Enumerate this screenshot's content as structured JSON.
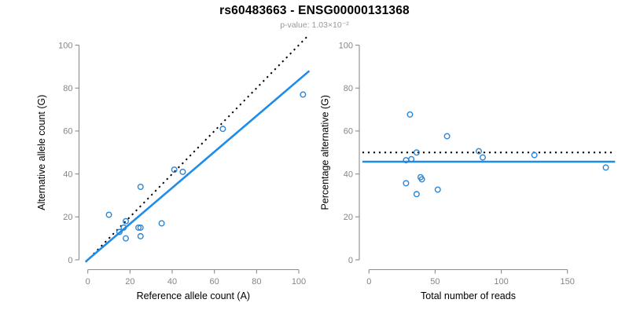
{
  "header": {
    "title": "rs60483663 - ENSG00000131368",
    "subtitle": "p-value: 1.03×10⁻²"
  },
  "colors": {
    "background": "#FFFFFF",
    "point": "#2E86D5",
    "fit_line": "#1E8CEB",
    "reference_line": "#000000",
    "axis": "#8C8C8C",
    "tick_label": "#858585",
    "axis_title": "#000000",
    "title": "#000000",
    "subtitle": "#999999"
  },
  "chart_data": [
    {
      "type": "scatter",
      "panel": "left",
      "title": "rs60483663 - ENSG00000131368",
      "subtitle": "p-value: 1.03×10⁻²",
      "xlabel": "Reference allele count (A)",
      "ylabel": "Alternative allele count (G)",
      "xlim": [
        0,
        104
      ],
      "ylim": [
        0,
        104
      ],
      "xticks": [
        0,
        20,
        40,
        60,
        80,
        100
      ],
      "yticks": [
        0,
        20,
        40,
        60,
        80,
        100
      ],
      "grid": false,
      "legend": false,
      "points": [
        [
          10,
          21
        ],
        [
          15,
          13
        ],
        [
          17,
          15
        ],
        [
          18,
          18
        ],
        [
          18,
          10
        ],
        [
          24,
          15
        ],
        [
          25,
          15
        ],
        [
          25,
          11
        ],
        [
          25,
          34
        ],
        [
          35,
          17
        ],
        [
          41,
          42
        ],
        [
          45,
          41
        ],
        [
          64,
          61
        ],
        [
          102,
          77
        ]
      ],
      "lines": [
        {
          "name": "identity-line",
          "style": "dotted",
          "color": "#000000",
          "from": [
            -1,
            -1
          ],
          "to": [
            105,
            105
          ]
        },
        {
          "name": "fit-line",
          "style": "solid",
          "color": "#1E8CEB",
          "from": [
            -1,
            -0.8
          ],
          "to": [
            105,
            88.0
          ]
        }
      ]
    },
    {
      "type": "scatter",
      "panel": "right",
      "xlabel": "Total number of reads",
      "ylabel": "Percentage alternative (G)",
      "xlim": [
        0,
        186
      ],
      "ylim": [
        0,
        104
      ],
      "xticks": [
        0,
        50,
        100,
        150
      ],
      "yticks": [
        0,
        20,
        40,
        60,
        80,
        100
      ],
      "grid": false,
      "legend": false,
      "points": [
        [
          31,
          67.7
        ],
        [
          28,
          46.4
        ],
        [
          32,
          46.9
        ],
        [
          36,
          50.0
        ],
        [
          28,
          35.7
        ],
        [
          39,
          38.5
        ],
        [
          40,
          37.5
        ],
        [
          36,
          30.6
        ],
        [
          59,
          57.6
        ],
        [
          52,
          32.7
        ],
        [
          83,
          50.6
        ],
        [
          86,
          47.7
        ],
        [
          125,
          48.8
        ],
        [
          179,
          43.0
        ]
      ],
      "lines": [
        {
          "name": "reference-line",
          "style": "dotted",
          "color": "#000000",
          "from": [
            -5,
            50
          ],
          "to": [
            186,
            50
          ]
        },
        {
          "name": "fit-line",
          "style": "solid",
          "color": "#1E8CEB",
          "from": [
            -5,
            45.7
          ],
          "to": [
            186,
            45.7
          ]
        }
      ]
    }
  ]
}
